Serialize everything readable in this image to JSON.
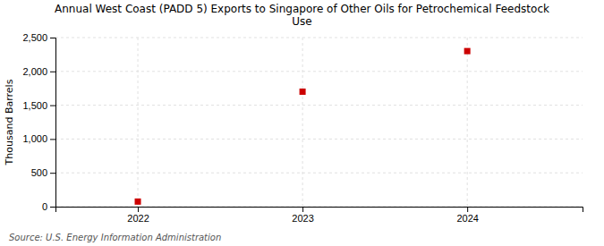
{
  "chart_data": {
    "type": "scatter",
    "title": "Annual West Coast (PADD 5) Exports to Singapore of Other Oils for Petrochemical Feedstock\nUse",
    "x": [
      2022,
      2023,
      2024
    ],
    "values": [
      75,
      1700,
      2300
    ],
    "ylabel": "Thousand Barrels",
    "xlim": [
      2021.5,
      2024.7
    ],
    "xticks": [
      2022,
      2023,
      2024
    ],
    "ylim": [
      0,
      2500
    ],
    "yticks": [
      0,
      500,
      {
        "value": 1000,
        "label": "1,000"
      },
      {
        "value": 1500,
        "label": "1,500"
      },
      {
        "value": 2000,
        "label": "2,000"
      },
      {
        "value": 2500,
        "label": "2,500"
      }
    ],
    "color": "#cc0000",
    "marker": "square",
    "grid": true,
    "source": "Source: U.S. Energy Information Administration"
  }
}
